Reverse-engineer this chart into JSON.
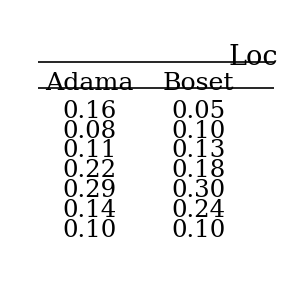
{
  "header_top": "Loc",
  "col_headers": [
    "Adama",
    "Boset"
  ],
  "rows": [
    [
      "0.16",
      "0.05"
    ],
    [
      "0.08",
      "0.10"
    ],
    [
      "0.11",
      "0.13"
    ],
    [
      "0.22",
      "0.18"
    ],
    [
      "0.29",
      "0.30"
    ],
    [
      "0.14",
      "0.24"
    ],
    [
      "0.10",
      "0.10"
    ]
  ],
  "background_color": "#ffffff",
  "text_color": "#000000",
  "font_size": 13.0,
  "header_font_size": 13.0
}
